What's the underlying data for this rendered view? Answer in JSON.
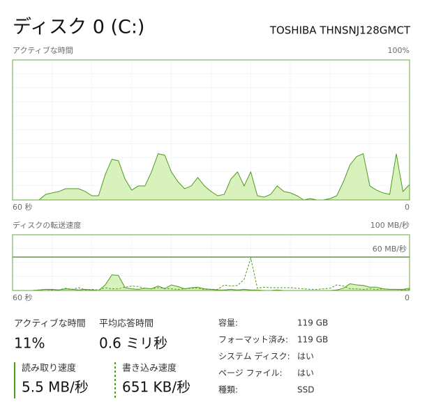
{
  "header": {
    "title": "ディスク 0 (C:)",
    "model": "TOSHIBA THNSNJ128GMCT"
  },
  "chart_data": [
    {
      "type": "area",
      "title": "アクティブな時間",
      "color": "#4e9a1e",
      "fill": "#d9f2bd",
      "x": [
        60,
        59,
        58,
        57,
        56,
        55,
        54,
        53,
        52,
        51,
        50,
        49,
        48,
        47,
        46,
        45,
        44,
        43,
        42,
        41,
        40,
        39,
        38,
        37,
        36,
        35,
        34,
        33,
        32,
        31,
        30,
        29,
        28,
        27,
        26,
        25,
        24,
        23,
        22,
        21,
        20,
        19,
        18,
        17,
        16,
        15,
        14,
        13,
        12,
        11,
        10,
        9,
        8,
        7,
        6,
        5,
        4,
        3,
        2,
        1,
        0
      ],
      "values": [
        0,
        0,
        0,
        0,
        0,
        4,
        5,
        6,
        8,
        8,
        8,
        6,
        3,
        3,
        18,
        29,
        28,
        15,
        7,
        10,
        10,
        20,
        33,
        32,
        20,
        13,
        8,
        10,
        16,
        10,
        6,
        3,
        4,
        15,
        20,
        10,
        20,
        3,
        2,
        4,
        10,
        6,
        5,
        3,
        0,
        1,
        0,
        0,
        1,
        3,
        13,
        25,
        31,
        33,
        10,
        7,
        5,
        4,
        33,
        6,
        11
      ],
      "xlim": [
        60,
        0
      ],
      "xticks": [
        {
          "value": 60,
          "label": "60 秒"
        },
        0
      ],
      "ylim": [
        0,
        100
      ],
      "yticks": [
        {
          "value": 100,
          "label": "100%"
        }
      ],
      "grid": true
    },
    {
      "type": "area",
      "title": "ディスクの転送速度",
      "x": [
        60,
        59,
        58,
        57,
        56,
        55,
        54,
        53,
        52,
        51,
        50,
        49,
        48,
        47,
        46,
        45,
        44,
        43,
        42,
        41,
        40,
        39,
        38,
        37,
        36,
        35,
        34,
        33,
        32,
        31,
        30,
        29,
        28,
        27,
        26,
        25,
        24,
        23,
        22,
        21,
        20,
        19,
        18,
        17,
        16,
        15,
        14,
        13,
        12,
        11,
        10,
        9,
        8,
        7,
        6,
        5,
        4,
        3,
        2,
        1,
        0
      ],
      "series": [
        {
          "name": "読み取り速度",
          "color": "#4e9a1e",
          "fill": "#d9f2bd",
          "dashed": false,
          "values": [
            0,
            0,
            0,
            0,
            1,
            2,
            2,
            1,
            3,
            2,
            1,
            2,
            1,
            0,
            10,
            28,
            27,
            5,
            3,
            2,
            4,
            3,
            8,
            3,
            10,
            7,
            3,
            5,
            6,
            3,
            2,
            1,
            1,
            2,
            1,
            2,
            1,
            1,
            0,
            0,
            1,
            0,
            0,
            0,
            0,
            0,
            0,
            0,
            0,
            1,
            4,
            12,
            10,
            9,
            6,
            6,
            3,
            2,
            2,
            2,
            4
          ]
        },
        {
          "name": "書き込み速度",
          "color": "#4e9a1e",
          "dashed": true,
          "values": [
            0,
            0,
            0,
            0,
            1,
            2,
            1,
            1,
            4,
            2,
            5,
            1,
            2,
            1,
            5,
            3,
            3,
            6,
            8,
            7,
            4,
            3,
            5,
            4,
            3,
            2,
            3,
            4,
            4,
            2,
            2,
            2,
            10,
            8,
            9,
            20,
            58,
            4,
            6,
            5,
            5,
            5,
            5,
            4,
            3,
            2,
            2,
            3,
            4,
            10,
            8,
            3,
            3,
            2,
            3,
            2,
            3,
            2,
            2,
            1,
            2
          ]
        }
      ],
      "reference": {
        "value": 60,
        "label": "60 MB/秒"
      },
      "xlim": [
        60,
        0
      ],
      "xticks": [
        {
          "value": 60,
          "label": "60 秒"
        },
        0
      ],
      "ylim": [
        0,
        100
      ],
      "yticks": [
        {
          "value": 100,
          "label": "100 MB/秒"
        }
      ],
      "grid": true
    }
  ],
  "stats": {
    "active_time": {
      "label": "アクティブな時間",
      "value": "11%"
    },
    "response_time": {
      "label": "平均応答時間",
      "value": "0.6 ミリ秒"
    },
    "read_speed": "5.5 MB/秒",
    "write_speed": "651 KB/秒"
  },
  "properties": [
    {
      "label": "容量:",
      "value": "119 GB"
    },
    {
      "label": "フォーマット済み:",
      "value": "119 GB"
    },
    {
      "label": "システム ディスク:",
      "value": "はい"
    },
    {
      "label": "ページ ファイル:",
      "value": "はい"
    },
    {
      "label": "種類:",
      "value": "SSD"
    }
  ]
}
